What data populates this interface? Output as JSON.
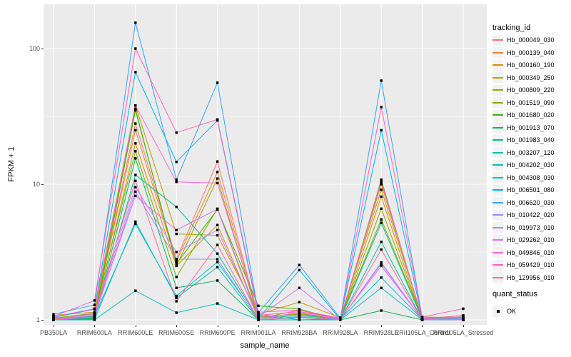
{
  "colors": {
    "panel_bg": "#EBEBEB",
    "grid": "#FFFFFF",
    "axis_text": "#4D4D4D",
    "marker": "#000000",
    "legend_key_bg": "#F2F2F2"
  },
  "chart_data": {
    "type": "line",
    "title": "",
    "xlabel": "sample_name",
    "ylabel": "FPKM + 1",
    "yscale": "log10",
    "ytick_labels": [
      "100",
      "10",
      "1"
    ],
    "yticks": [
      100,
      10,
      1
    ],
    "yminor": [
      3.162,
      31.62
    ],
    "ylim": [
      0.93,
      200
    ],
    "grid": "on",
    "legend_position": "right",
    "legend_title": "tracking_id",
    "point_legend": {
      "title": "quant_status",
      "label": "OK"
    },
    "categories": [
      "PB350LA",
      "RRIM600LA",
      "RRIM600LE",
      "RRIM600SE",
      "RRIM600PE",
      "RRIM901LA",
      "RRIM928BA",
      "RRIM928LA",
      "RRIM928LE",
      "RRII105LA_Control",
      "RRII105LA_Stressed"
    ],
    "series": [
      {
        "name": "Hb_000049_030",
        "color": "#F8766D",
        "values": [
          1.0,
          1.08,
          28,
          2.8,
          14.7,
          1.05,
          1.1,
          1.02,
          10.4,
          1.02,
          1.03
        ]
      },
      {
        "name": "Hb_000139_040",
        "color": "#EA8331",
        "values": [
          1.02,
          1.1,
          25,
          2.7,
          12.3,
          1.08,
          1.15,
          1.03,
          10.0,
          1.03,
          1.07
        ]
      },
      {
        "name": "Hb_000160_190",
        "color": "#D89000",
        "values": [
          1.0,
          1.05,
          20,
          2.5,
          5.0,
          1.02,
          1.18,
          1.0,
          8.1,
          1.0,
          1.02
        ]
      },
      {
        "name": "Hb_000349_250",
        "color": "#C09B00",
        "values": [
          1.08,
          1.14,
          38,
          4.3,
          4.2,
          1.1,
          1.35,
          1.04,
          9.1,
          1.05,
          1.04
        ]
      },
      {
        "name": "Hb_000809_220",
        "color": "#A3A500",
        "values": [
          1.0,
          1.06,
          36,
          2.5,
          11.0,
          1.03,
          1.12,
          1.01,
          6.6,
          1.01,
          1.02
        ]
      },
      {
        "name": "Hb_001519_090",
        "color": "#7CAE00",
        "values": [
          1.03,
          1.12,
          17.5,
          2.07,
          6.6,
          1.06,
          1.1,
          1.02,
          5.5,
          1.02,
          1.05
        ]
      },
      {
        "name": "Hb_001680_020",
        "color": "#39B600",
        "values": [
          1.0,
          1.04,
          35,
          2.6,
          6.5,
          1.27,
          1.2,
          1.0,
          10.8,
          1.0,
          1.0
        ]
      },
      {
        "name": "Hb_001913_070",
        "color": "#00BB4E",
        "values": [
          1.01,
          1.03,
          15.5,
          1.72,
          1.95,
          1.0,
          1.05,
          1.0,
          1.17,
          1.0,
          1.01
        ]
      },
      {
        "name": "Hb_001983_040",
        "color": "#00C087",
        "values": [
          1.0,
          1.02,
          11.7,
          6.8,
          3.08,
          1.02,
          1.08,
          1.01,
          5.2,
          1.01,
          1.0
        ]
      },
      {
        "name": "Hb_003207_120",
        "color": "#00C1A3",
        "values": [
          1.0,
          1.01,
          5.3,
          1.45,
          2.45,
          1.0,
          1.04,
          1.0,
          3.76,
          1.0,
          1.0
        ]
      },
      {
        "name": "Hb_004202_030",
        "color": "#00BFC4",
        "values": [
          1.0,
          1.0,
          1.64,
          1.13,
          1.32,
          1.0,
          1.0,
          1.0,
          1.72,
          1.0,
          1.0
        ]
      },
      {
        "name": "Hb_004308_030",
        "color": "#00BAE0",
        "values": [
          1.01,
          1.07,
          5.1,
          1.5,
          2.67,
          1.02,
          2.33,
          1.01,
          2.05,
          1.01,
          1.02
        ]
      },
      {
        "name": "Hb_006501_080",
        "color": "#00B0F6",
        "values": [
          1.04,
          1.2,
          67,
          14.6,
          29.5,
          1.1,
          1.0,
          1.02,
          25,
          1.02,
          1.0
        ]
      },
      {
        "name": "Hb_006620_030",
        "color": "#35A2FF",
        "values": [
          1.1,
          1.29,
          155,
          10.8,
          56,
          1.13,
          2.54,
          1.03,
          58,
          1.03,
          1.03
        ]
      },
      {
        "name": "Hb_010422_020",
        "color": "#9590FF",
        "values": [
          1.0,
          1.05,
          8.8,
          2.8,
          2.8,
          1.0,
          1.06,
          1.0,
          2.65,
          1.0,
          1.01
        ]
      },
      {
        "name": "Hb_019973_010",
        "color": "#C77CFF",
        "values": [
          1.01,
          1.1,
          9.5,
          3.16,
          4.6,
          1.05,
          1.72,
          1.0,
          2.6,
          1.0,
          1.02
        ]
      },
      {
        "name": "Hb_029262_010",
        "color": "#E76BF3",
        "values": [
          1.0,
          1.08,
          8.2,
          4.6,
          6.55,
          1.02,
          1.13,
          1.01,
          2.5,
          1.01,
          1.0
        ]
      },
      {
        "name": "Hb_049846_010",
        "color": "#FA62DB",
        "values": [
          1.05,
          1.21,
          38,
          10.4,
          10.2,
          1.08,
          1.15,
          1.02,
          10.5,
          1.02,
          1.05
        ]
      },
      {
        "name": "Hb_059429_010",
        "color": "#FF62BC",
        "values": [
          1.06,
          1.39,
          100,
          24,
          30,
          1.14,
          1.18,
          1.03,
          37,
          1.05,
          1.21
        ]
      },
      {
        "name": "Hb_129956_010",
        "color": "#FF6A98",
        "values": [
          1.0,
          1.12,
          10.6,
          1.37,
          3.57,
          1.0,
          1.05,
          1.0,
          3.3,
          1.0,
          1.08
        ]
      }
    ]
  }
}
